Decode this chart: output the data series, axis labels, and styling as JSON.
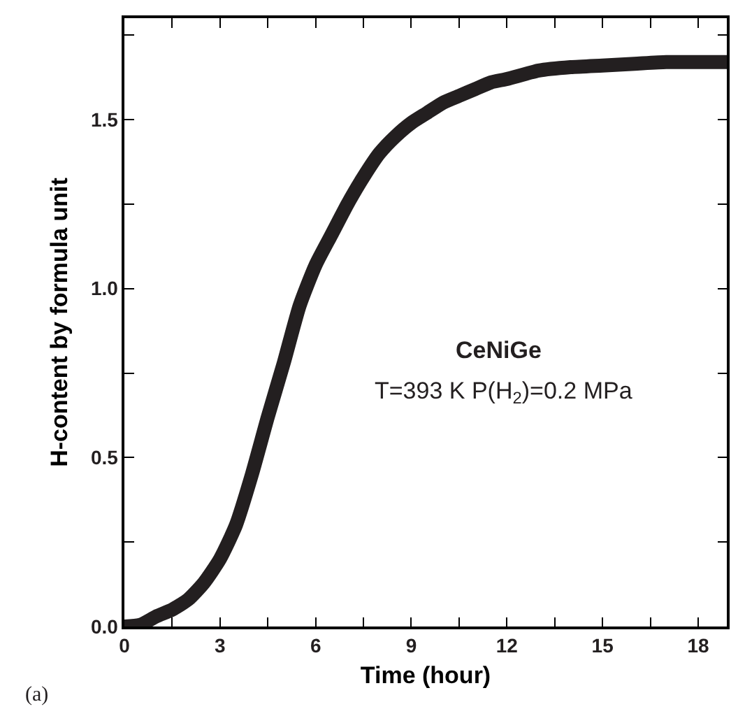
{
  "chart_data": {
    "type": "line",
    "xlabel": "Time (hour)",
    "ylabel": "H-content by formula unit",
    "annotations": [
      "CeNiGe",
      "T=393 K P(H$_{2}$)=0.2 MPa",
      "(a)"
    ],
    "x": [
      0,
      0.5,
      1,
      1.5,
      2,
      2.5,
      3,
      3.5,
      4,
      4.5,
      5,
      5.5,
      6,
      6.5,
      7,
      7.5,
      8,
      8.5,
      9,
      9.5,
      10,
      10.5,
      11,
      11.5,
      12,
      13,
      14,
      15,
      16,
      17,
      18,
      18.9
    ],
    "series": [
      {
        "color": "#231f20",
        "values": [
          0.0,
          0.005,
          0.03,
          0.05,
          0.08,
          0.13,
          0.2,
          0.3,
          0.45,
          0.62,
          0.78,
          0.95,
          1.07,
          1.16,
          1.25,
          1.33,
          1.4,
          1.45,
          1.49,
          1.52,
          1.55,
          1.57,
          1.59,
          1.61,
          1.62,
          1.645,
          1.655,
          1.66,
          1.665,
          1.67,
          1.67,
          1.67
        ]
      }
    ],
    "xlim": [
      0,
      18.9
    ],
    "ylim": [
      0,
      1.8
    ],
    "xticks": [
      0,
      {
        "value": 1.5,
        "label": null
      },
      3,
      {
        "value": 4.5,
        "label": null
      },
      6,
      {
        "value": 7.5,
        "label": null
      },
      9,
      {
        "value": 10.5,
        "label": null
      },
      12,
      {
        "value": 13.5,
        "label": null
      },
      15,
      {
        "value": 16.5,
        "label": null
      },
      18
    ],
    "yticks": [
      {
        "value": 0,
        "label": "0.0"
      },
      {
        "value": 0.25,
        "label": null
      },
      0.5,
      {
        "value": 0.75,
        "label": null
      },
      {
        "value": 1,
        "label": "1.0"
      },
      {
        "value": 1.25,
        "label": null
      },
      1.5,
      {
        "value": 1.75,
        "label": null
      }
    ],
    "marker": "none",
    "line_style": "solid"
  }
}
